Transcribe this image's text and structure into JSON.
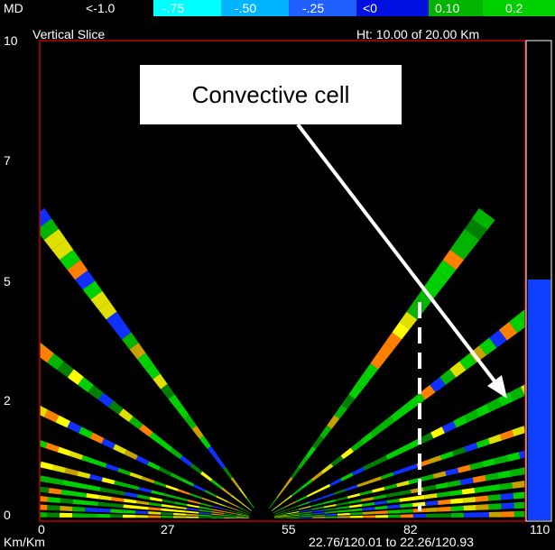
{
  "colorbar": {
    "labels": [
      "MD",
      "<-1.0",
      "-.75",
      "-.50",
      "-.25",
      "<0",
      "0.10",
      "0.2"
    ]
  },
  "header": {
    "title": "Vertical Slice",
    "height": "Ht:  10.00 of  20.00 Km"
  },
  "y_axis": {
    "labels": [
      "10",
      "7",
      "5",
      "2",
      "0"
    ]
  },
  "x_axis": {
    "labels": [
      "0",
      "27",
      "55",
      "82",
      "110"
    ],
    "unit": "Km/Km",
    "range": "22.76/120.01 to 22.26/120.93"
  },
  "annotation": "Convective cell"
}
